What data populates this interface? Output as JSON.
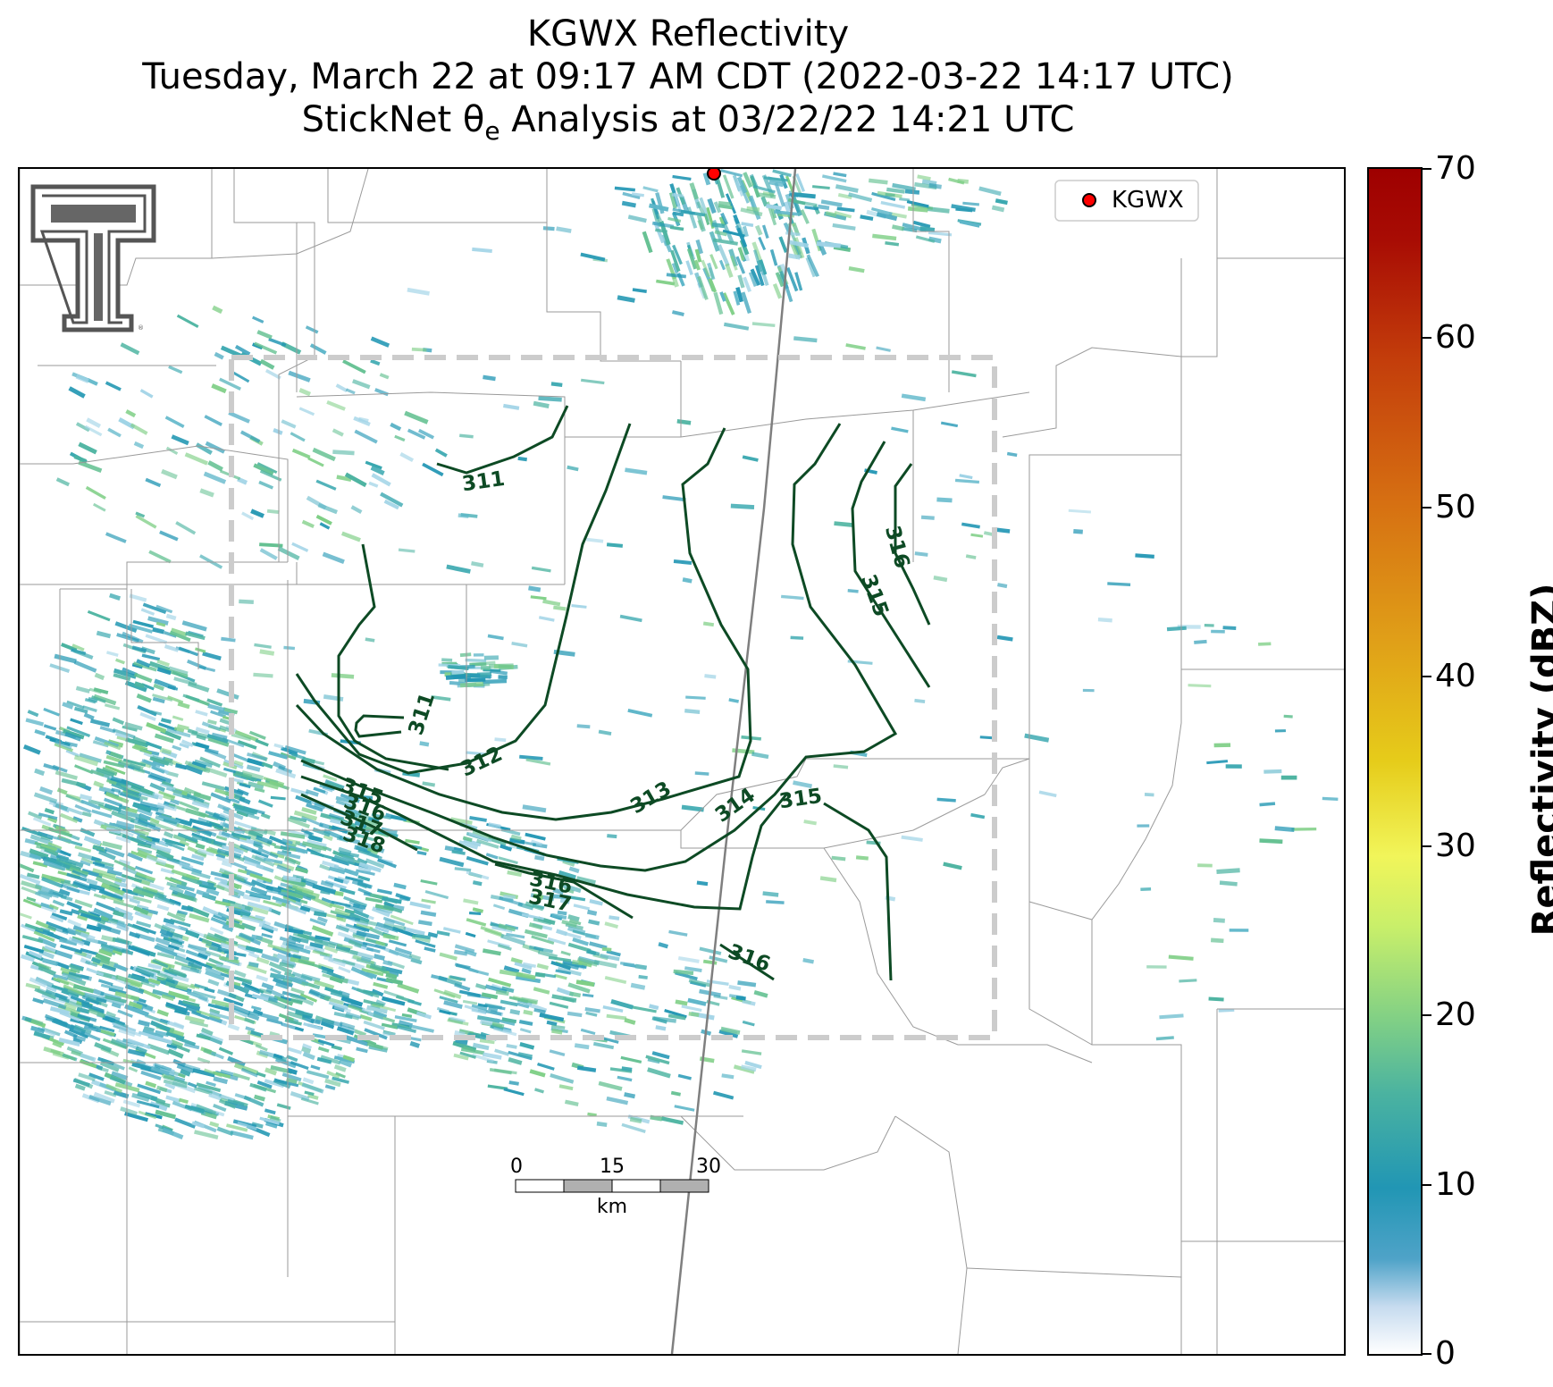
{
  "title": {
    "line1": "KGWX Reflectivity",
    "line2": "Tuesday, March 22 at 09:17 AM CDT (2022-03-22 14:17 UTC)",
    "line3_prefix": "StickNet θ",
    "line3_sub": "e",
    "line3_suffix": " Analysis at 03/22/22 14:21 UTC"
  },
  "legend": {
    "label": "KGWX",
    "marker_color": "#ff0000"
  },
  "colorbar": {
    "label": "Reflectivity (dBZ)",
    "min": 0,
    "max": 70,
    "ticks": [
      "0",
      "10",
      "20",
      "30",
      "40",
      "50",
      "60",
      "70"
    ]
  },
  "scalebar": {
    "ticks": [
      "0",
      "15",
      "30"
    ],
    "unit": "km"
  },
  "contours": {
    "color": "#0d4a24",
    "labels": [
      "311",
      "311",
      "312",
      "313",
      "314",
      "315",
      "315",
      "316",
      "316",
      "316",
      "315",
      "316",
      "317",
      "318",
      "317"
    ]
  },
  "logo": {
    "name": "Texas Tech double-T logo"
  }
}
